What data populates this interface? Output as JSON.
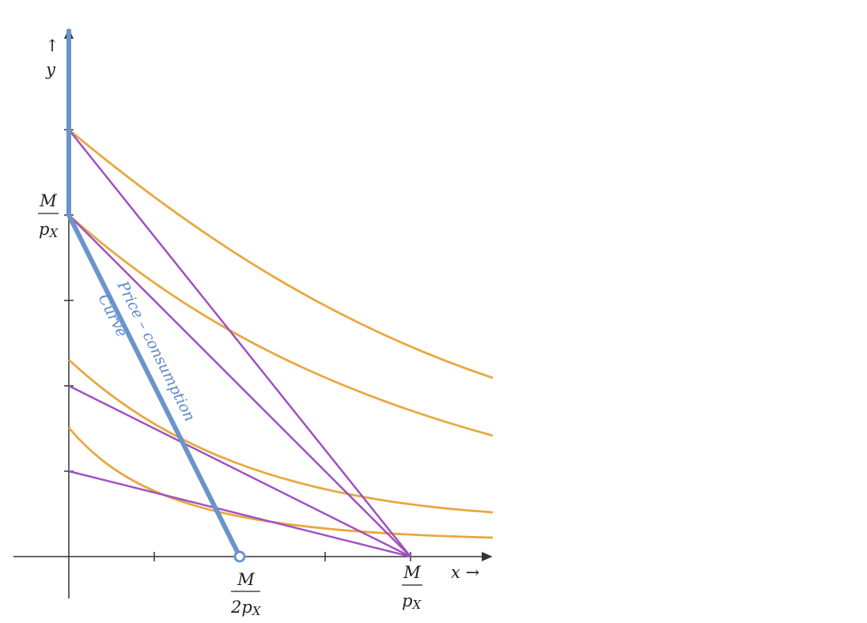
{
  "y_axis": {
    "arrow": "↑",
    "label": "y"
  },
  "x_axis": {
    "label": "x →"
  },
  "y_intercept": {
    "numerator": "M",
    "denominator": "p",
    "subscript": "X"
  },
  "x_half": {
    "numerator": "M",
    "denominator": "2p",
    "subscript": "X"
  },
  "x_intercept": {
    "numerator": "M",
    "denominator": "p",
    "subscript": "X"
  },
  "curve_label": {
    "line1": "Price – consumption",
    "line2": "Curve"
  }
}
